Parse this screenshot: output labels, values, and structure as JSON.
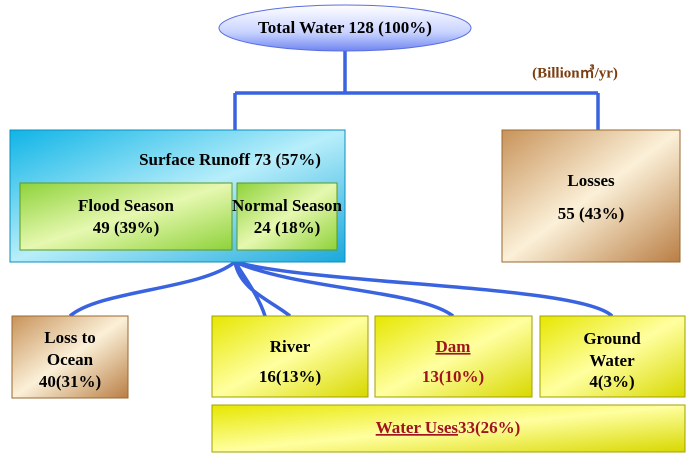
{
  "top": {
    "label": "Total Water  128 (100%)"
  },
  "unit": "(Billion㎥/yr)",
  "surface_runoff": {
    "label": "Surface Runoff  73 (57%)",
    "flood": {
      "name": "Flood Season",
      "value": "49 (39%)"
    },
    "normal": {
      "name": "Normal Season",
      "value": "24 (18%)"
    }
  },
  "losses": {
    "name": "Losses",
    "value": "55 (43%)"
  },
  "outputs": [
    {
      "name": [
        "Loss to",
        "Ocean"
      ],
      "value": "40(31%)"
    },
    {
      "name": [
        "River"
      ],
      "value": "16(13%)"
    },
    {
      "name": [
        "Dam"
      ],
      "value": "13(10%)"
    },
    {
      "name": [
        "Ground",
        "Water"
      ],
      "value": "4(3%)"
    }
  ],
  "water_uses": {
    "name": "Water Uses",
    "value": "33(26%)"
  }
}
